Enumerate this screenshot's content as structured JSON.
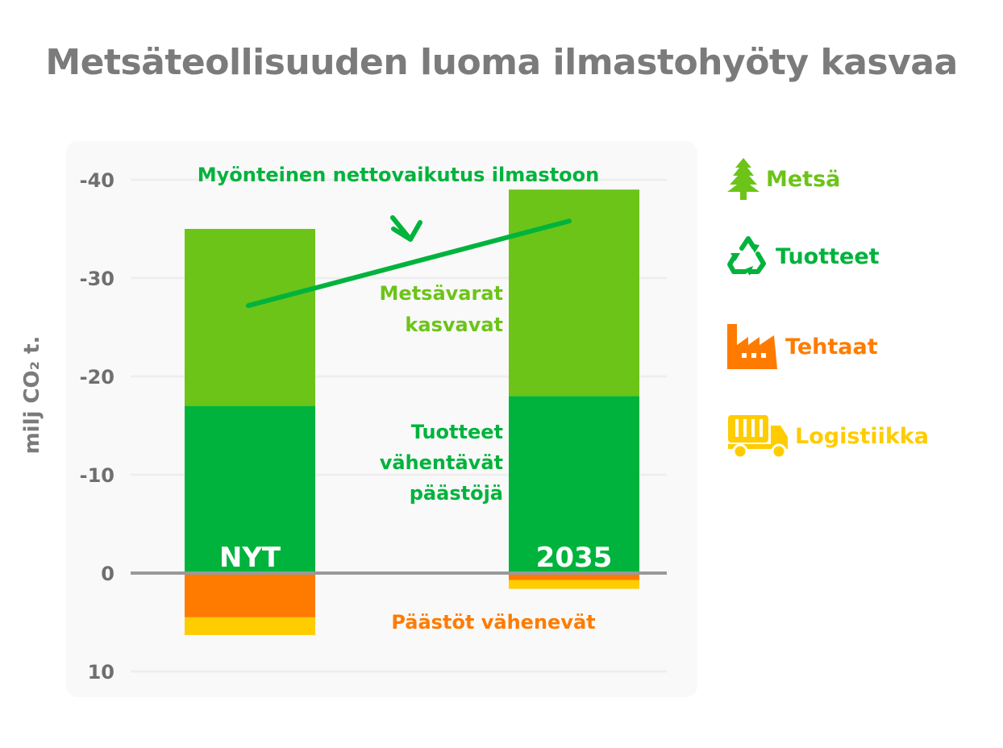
{
  "title": "Metsäteollisuuden luoma ilmastohyöty kasvaa",
  "ylabel": "milj CO₂ t.",
  "colors": {
    "forest": "#6cc418",
    "products": "#00b33c",
    "factories": "#ff7b00",
    "logistics": "#ffcc00",
    "axis": "#999999",
    "grid": "#eeeeee",
    "tick_text": "#6f6f6f",
    "title": "#7b7b7b"
  },
  "legend": [
    {
      "label": "Metsä",
      "icon": "tree-icon",
      "color": "#6cc418"
    },
    {
      "label": "Tuotteet",
      "icon": "recycle-icon",
      "color": "#00b33c"
    },
    {
      "label": "Tehtaat",
      "icon": "factory-icon",
      "color": "#ff7b00"
    },
    {
      "label": "Logistiikka",
      "icon": "truck-icon",
      "color": "#ffcc00"
    }
  ],
  "chart_data": {
    "type": "bar",
    "stacked": true,
    "categories": [
      "NYT",
      "2035"
    ],
    "series": [
      {
        "name": "Metsä",
        "values": [
          -18,
          -21
        ]
      },
      {
        "name": "Tuotteet",
        "values": [
          -17,
          -18
        ]
      },
      {
        "name": "Tehtaat",
        "values": [
          4.5,
          0.7
        ]
      },
      {
        "name": "Logistiikka",
        "values": [
          1.8,
          0.9
        ]
      }
    ],
    "yticks": [
      -40,
      -30,
      -20,
      -10,
      0,
      10
    ],
    "ytick_labels": [
      "-40",
      "-30",
      "-20",
      "-10",
      "0",
      "10"
    ],
    "ylim": [
      10,
      -41
    ],
    "y_inverted": true,
    "grid": true,
    "trend_line": {
      "label": "Myönteinen nettovaikutus ilmastoon",
      "from": [
        "NYT",
        -27.2
      ],
      "to": [
        "2035",
        -35.8
      ]
    },
    "annotations": {
      "forest": [
        "Metsävarat",
        "kasvavat"
      ],
      "products": [
        "Tuotteet",
        "vähentävät",
        "päästöjä"
      ],
      "emissions": "Päästöt vähenevät"
    }
  }
}
